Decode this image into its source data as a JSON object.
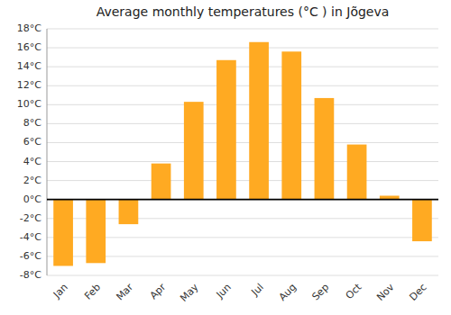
{
  "chart_data": {
    "type": "bar",
    "title": "Average monthly temperatures (°C ) in Jõgeva",
    "categories": [
      "Jan",
      "Feb",
      "Mar",
      "Apr",
      "May",
      "Jun",
      "Jul",
      "Aug",
      "Sep",
      "Oct",
      "Nov",
      "Dec"
    ],
    "values": [
      -7.0,
      -6.7,
      -2.6,
      3.8,
      10.3,
      14.7,
      16.6,
      15.6,
      10.7,
      5.8,
      0.4,
      -4.4
    ],
    "color": "#FFAA22",
    "ylim": [
      -8,
      18
    ],
    "yticks": [
      {
        "value": -8,
        "label": "-8°C"
      },
      {
        "value": -6,
        "label": "-6°C"
      },
      {
        "value": -4,
        "label": "-4°C"
      },
      {
        "value": -2,
        "label": "-2°C"
      },
      {
        "value": 0,
        "label": "0°C"
      },
      {
        "value": 2,
        "label": "2°C"
      },
      {
        "value": 4,
        "label": "4°C"
      },
      {
        "value": 6,
        "label": "6°C"
      },
      {
        "value": 8,
        "label": "8°C"
      },
      {
        "value": 10,
        "label": "10°C"
      },
      {
        "value": 12,
        "label": "12°C"
      },
      {
        "value": 14,
        "label": "14°C"
      },
      {
        "value": 16,
        "label": "16°C"
      },
      {
        "value": 18,
        "label": "18°C"
      }
    ],
    "grid": true
  }
}
